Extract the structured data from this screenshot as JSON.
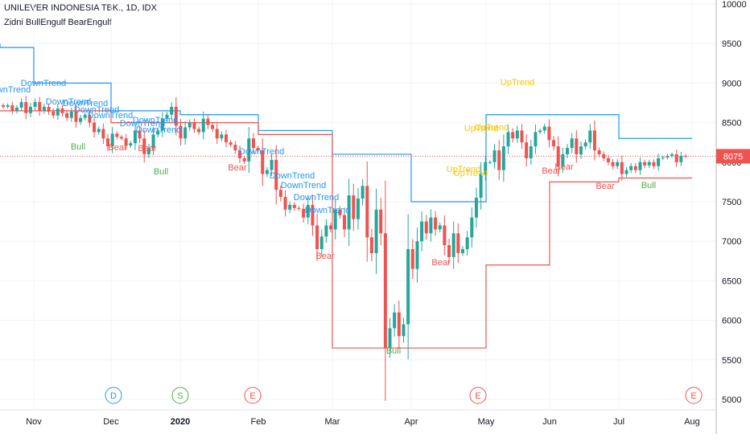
{
  "header": {
    "symbol_line": "UNILEVER INDONESIA TBK., 1D, IDX",
    "indicator_line": "Zidni BullEngulf BearEngulf"
  },
  "colors": {
    "up": "#26a69a",
    "down": "#ef5350",
    "upper_band": "#2196f3",
    "lower_band": "#ef5350",
    "uptrend_label": "#f7c600",
    "downtrend_label": "#2196f3",
    "bull_label": "#4caf50",
    "bear_label": "#ef5350",
    "price_badge": "#ef5350",
    "grid": "#f0f3fa"
  },
  "chart_data": {
    "type": "candlestick",
    "title": "UNILEVER INDONESIA TBK., 1D, IDX",
    "y_axis": {
      "side": "right",
      "ylim": [
        4900,
        10100
      ],
      "ticks": [
        5000,
        5500,
        6000,
        6500,
        7000,
        7500,
        8000,
        8500,
        9000,
        9500,
        10000
      ]
    },
    "x_axis": {
      "ticks": [
        "Nov",
        "Dec",
        "2020",
        "Feb",
        "Mar",
        "Apr",
        "May",
        "Jun",
        "Jul",
        "Aug"
      ]
    },
    "last_price": 8075,
    "price_line": 8075,
    "grid": true,
    "ohlc_start_index": 0,
    "closes": [
      8700,
      8720,
      8650,
      8690,
      8760,
      8620,
      8700,
      8760,
      8650,
      8700,
      8640,
      8590,
      8680,
      8620,
      8560,
      8640,
      8510,
      8560,
      8600,
      8500,
      8380,
      8420,
      8300,
      8200,
      8360,
      8320,
      8300,
      8210,
      8240,
      8400,
      8300,
      8100,
      8180,
      8350,
      8400,
      8550,
      8600,
      8700,
      8460,
      8300,
      8440,
      8500,
      8420,
      8380,
      8550,
      8470,
      8420,
      8300,
      8350,
      8250,
      8220,
      8150,
      8050,
      8010,
      8300,
      8180,
      8150,
      7850,
      7900,
      8030,
      7650,
      7560,
      7400,
      7460,
      7420,
      7410,
      7300,
      7460,
      7200,
      6900,
      7060,
      7200,
      7150,
      7400,
      7330,
      7150,
      7580,
      7280,
      7540,
      7700,
      7050,
      6850,
      7400,
      7100,
      5650,
      5900,
      6100,
      5800,
      5950,
      6900,
      6650,
      7000,
      7250,
      7100,
      7300,
      7150,
      7200,
      6950,
      6800,
      7100,
      6850,
      6900,
      7050,
      7300,
      7550,
      7850,
      8000,
      8000,
      8150,
      7900,
      8200,
      8380,
      8300,
      8400,
      8250,
      8050,
      8200,
      8380,
      8400,
      8450,
      8280,
      8200,
      7950,
      8100,
      8180,
      8300,
      8100,
      8200,
      8250,
      8400,
      8150,
      8100,
      8050,
      8000,
      7950,
      8000,
      7850,
      7900,
      7950,
      7900,
      8000,
      7960,
      8000,
      7950,
      8050,
      8060,
      8080,
      8100,
      8000,
      8080,
      8075
    ],
    "series": [
      {
        "name": "",
        "style": "step",
        "points": [
          [
            "Oct",
            9500
          ],
          [
            "Oct",
            9450
          ],
          [
            "Nov",
            9200
          ],
          [
            "Nov",
            9100
          ],
          [
            "Nov",
            9000
          ],
          [
            "Dec",
            8800
          ],
          [
            "Dec",
            8650
          ],
          [
            "2020",
            8600
          ],
          [
            "Feb",
            8550
          ],
          [
            "Feb",
            8500
          ],
          [
            "Feb",
            8400
          ],
          [
            "Mar",
            8300
          ],
          [
            "Mar",
            8100
          ],
          [
            "Apr",
            7750
          ],
          [
            "Apr",
            7500
          ],
          [
            "May",
            7750
          ],
          [
            "May",
            8600
          ],
          [
            "Jul",
            8600
          ],
          [
            "Jul",
            8300
          ],
          [
            "Aug",
            8300
          ]
        ]
      },
      {
        "name": "",
        "style": "step",
        "points": [
          [
            "Oct",
            8650
          ],
          [
            "Dec",
            8650
          ],
          [
            "Dec",
            8500
          ],
          [
            "Feb",
            8500
          ],
          [
            "Feb",
            8350
          ],
          [
            "Mar",
            7450
          ],
          [
            "Mar",
            6900
          ],
          [
            "Mar",
            5650
          ],
          [
            "Apr",
            5650
          ],
          [
            "May",
            5700
          ],
          [
            "May",
            6000
          ],
          [
            "May",
            6700
          ],
          [
            "Jun",
            7200
          ],
          [
            "Jun",
            7750
          ],
          [
            "Jul",
            7800
          ],
          [
            "Aug",
            7800
          ]
        ]
      }
    ],
    "annotations": [
      {
        "text": "DownTrend",
        "kind": "downtrend"
      },
      {
        "text": "DownTrend",
        "kind": "downtrend"
      },
      {
        "text": "DownTrend",
        "kind": "downtrend"
      },
      {
        "text": "DownTrend",
        "kind": "downtrend"
      },
      {
        "text": "DownTrend",
        "kind": "downtrend"
      },
      {
        "text": "DownTrend",
        "kind": "downtrend"
      },
      {
        "text": "DownTrend",
        "kind": "downtrend"
      },
      {
        "text": "DownTrend",
        "kind": "downtrend"
      },
      {
        "text": "DownTrend",
        "kind": "downtrend"
      },
      {
        "text": "DownTrend",
        "kind": "downtrend"
      },
      {
        "text": "DownTrend",
        "kind": "downtrend"
      },
      {
        "text": "DownTrend",
        "kind": "downtrend"
      },
      {
        "text": "DownTrend",
        "kind": "downtrend"
      },
      {
        "text": "DownTrend",
        "kind": "downtrend"
      },
      {
        "text": "UpTrend",
        "kind": "uptrend"
      },
      {
        "text": "UpTrend",
        "kind": "uptrend"
      },
      {
        "text": "UpTrend",
        "kind": "uptrend"
      },
      {
        "text": "UpTrend",
        "kind": "uptrend"
      },
      {
        "text": "UpTrend",
        "kind": "uptrend"
      },
      {
        "text": "Bull",
        "kind": "bull"
      },
      {
        "text": "Bull",
        "kind": "bull"
      },
      {
        "text": "Bull",
        "kind": "bull"
      },
      {
        "text": "Bull",
        "kind": "bull"
      },
      {
        "text": "Bear",
        "kind": "bear"
      },
      {
        "text": "Bear",
        "kind": "bear"
      },
      {
        "text": "Bear",
        "kind": "bear"
      },
      {
        "text": "Bear",
        "kind": "bear"
      },
      {
        "text": "Bear",
        "kind": "bear"
      },
      {
        "text": "Bear",
        "kind": "bear"
      },
      {
        "text": "Bear",
        "kind": "bear"
      },
      {
        "text": "Bear",
        "kind": "bear"
      }
    ],
    "events": [
      {
        "letter": "D",
        "color": "#2196f3"
      },
      {
        "letter": "S",
        "color": "#4caf50"
      },
      {
        "letter": "E",
        "color": "#ef5350"
      },
      {
        "letter": "E",
        "color": "#ef5350"
      },
      {
        "letter": "E",
        "color": "#ef5350"
      }
    ]
  }
}
